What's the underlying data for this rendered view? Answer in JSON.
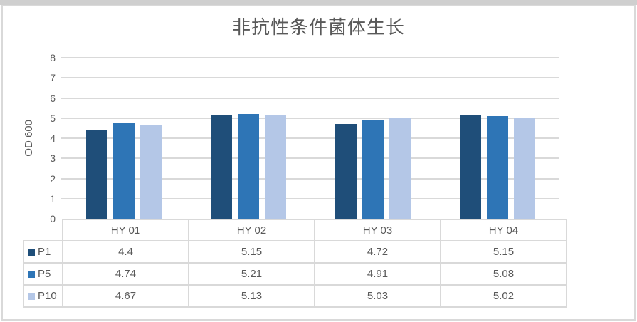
{
  "chart": {
    "title": "非抗性条件菌体生长",
    "y_axis_label": "OD 600"
  },
  "chart_data": {
    "type": "bar",
    "title": "非抗性条件菌体生长",
    "categories": [
      "HY 01",
      "HY 02",
      "HY 03",
      "HY 04"
    ],
    "series": [
      {
        "name": "P1",
        "color": "#1F4E79",
        "values": [
          4.4,
          5.15,
          4.72,
          5.15
        ]
      },
      {
        "name": "P5",
        "color": "#2E75B6",
        "values": [
          4.74,
          5.21,
          4.91,
          5.08
        ]
      },
      {
        "name": "P10",
        "color": "#B4C7E7",
        "values": [
          4.67,
          5.13,
          5.03,
          5.02
        ]
      }
    ],
    "xlabel": "",
    "ylabel": "OD 600",
    "ylim": [
      0,
      8
    ],
    "ytick_step": 1,
    "grid": true,
    "legend_position": "data-table-left",
    "colors": {
      "gridline": "#D9D9D9",
      "chart_border": "#D9D9D9",
      "table_border": "#D9D9D9",
      "text": "#595959",
      "background": "#FFFFFF",
      "outer_strip": "#CFCFCF"
    }
  }
}
